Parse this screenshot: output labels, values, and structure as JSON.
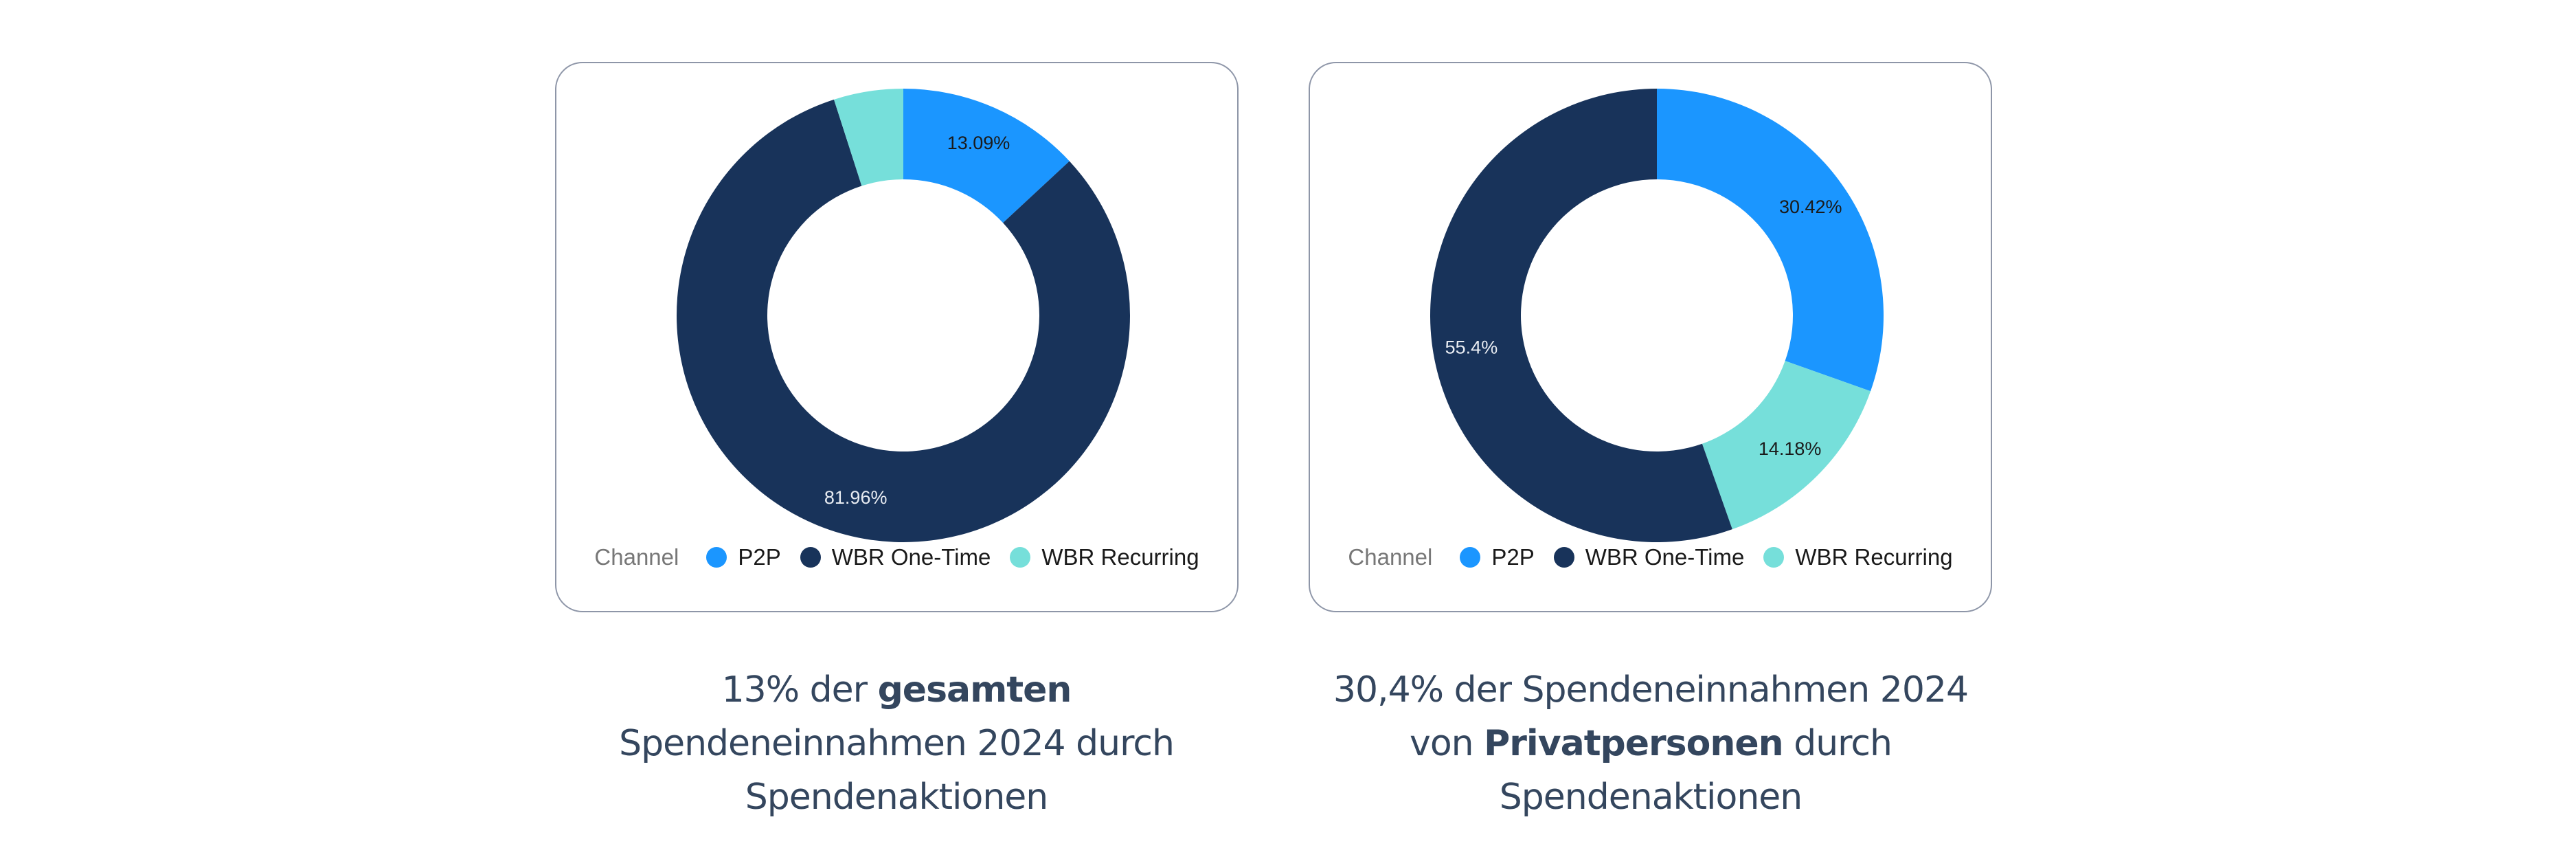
{
  "chart_data": [
    {
      "type": "pie",
      "variant": "donut",
      "legend_title": "Channel",
      "legend_position": "bottom",
      "categories": [
        "P2P",
        "WBR One-Time",
        "WBR Recurring"
      ],
      "values": [
        13.09,
        81.96,
        4.95
      ],
      "labels": [
        "13.09%",
        "81.96%",
        ""
      ],
      "colors": [
        "#1b96ff",
        "#18335a",
        "#76dfda"
      ],
      "label_colors": [
        "#1a1a1a",
        "#e8ecf2",
        "#1a1a1a"
      ]
    },
    {
      "type": "pie",
      "variant": "donut",
      "legend_title": "Channel",
      "legend_position": "bottom",
      "categories": [
        "P2P",
        "WBR One-Time",
        "WBR Recurring"
      ],
      "values": [
        30.42,
        55.4,
        14.18
      ],
      "labels": [
        "30.42%",
        "55.4%",
        "14.18%"
      ],
      "order": [
        0,
        2,
        1
      ],
      "colors": [
        "#1b96ff",
        "#18335a",
        "#76dfda"
      ],
      "label_colors": [
        "#1a1a1a",
        "#e8ecf2",
        "#1a1a1a"
      ]
    }
  ],
  "captions": [
    {
      "line1_regular": "13% der ",
      "line1_bold": "gesamten",
      "line2": "Spendeneinnahmen 2024 durch",
      "line3": "Spendenaktionen"
    },
    {
      "line1": "30,4% der Spendeneinnahmen 2024",
      "line2_regular_a": "von ",
      "line2_bold": "Privatpersonen",
      "line2_regular_b": " durch",
      "line3": "Spendenaktionen"
    }
  ]
}
